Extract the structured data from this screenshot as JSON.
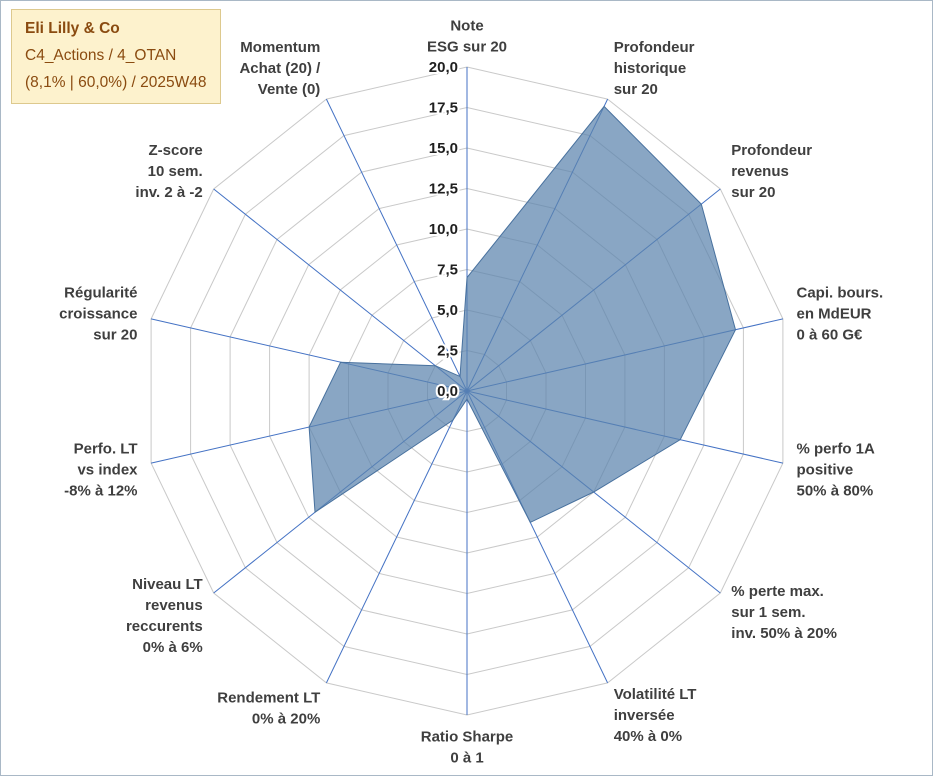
{
  "title_box": {
    "company": "Eli Lilly & Co",
    "portfolio": "C4_Actions / 4_OTAN",
    "stats": "(8,1% | 60,0%) / 2025W48",
    "colors": {
      "bg": "#fdf2cd",
      "border": "#ddc98e",
      "text": "#8a4b10"
    }
  },
  "chart_data": {
    "type": "radar",
    "r_min": 0,
    "r_max": 20,
    "r_step": 2.5,
    "start": "top",
    "direction": "clockwise",
    "grid": true,
    "tick_labels": [
      "0,0",
      "2,5",
      "5,0",
      "7,5",
      "10,0",
      "12,5",
      "15,0",
      "17,5",
      "20,0"
    ],
    "axes": [
      {
        "id": "note-esg",
        "label_lines": [
          "Note",
          "ESG sur 20"
        ],
        "value": 7
      },
      {
        "id": "profondeur-historique",
        "label_lines": [
          "Profondeur",
          "historique",
          "sur 20"
        ],
        "value": 19.5
      },
      {
        "id": "profondeur-revenus",
        "label_lines": [
          "Profondeur",
          "revenus",
          "sur 20"
        ],
        "value": 18.5
      },
      {
        "id": "capi-boursiere",
        "label_lines": [
          "Capi. bours.",
          "en MdEUR",
          "0 à 60 G€"
        ],
        "value": 17
      },
      {
        "id": "perfo-1a-positive",
        "label_lines": [
          "% perfo 1A",
          "positive",
          "50% à 80%"
        ],
        "value": 13.5
      },
      {
        "id": "perte-max-1-sem",
        "label_lines": [
          "% perte max.",
          "sur 1 sem.",
          "inv. 50% à 20%"
        ],
        "value": 10
      },
      {
        "id": "volatilite-lt-inversee",
        "label_lines": [
          "Volatilité LT",
          "inversée",
          "40% à 0%"
        ],
        "value": 9
      },
      {
        "id": "ratio-sharpe",
        "label_lines": [
          "Ratio Sharpe",
          "0 à 1"
        ],
        "value": 0.5
      },
      {
        "id": "rendement-lt",
        "label_lines": [
          "Rendement LT",
          "0% à 20%"
        ],
        "value": 2
      },
      {
        "id": "niveau-lt-revenus",
        "label_lines": [
          "Niveau LT",
          "revenus",
          "reccurents",
          "0% à 6%"
        ],
        "value": 12
      },
      {
        "id": "perfo-lt-vs-index",
        "label_lines": [
          "Perfo. LT",
          "vs index",
          "-8% à 12%"
        ],
        "value": 10
      },
      {
        "id": "regularite-croissance",
        "label_lines": [
          "Régularité",
          "croissance",
          "sur 20"
        ],
        "value": 8
      },
      {
        "id": "z-score",
        "label_lines": [
          "Z-score",
          "10 sem.",
          "inv. 2 à -2"
        ],
        "value": 2.5
      },
      {
        "id": "momentum",
        "label_lines": [
          "Momentum",
          "Achat (20) /",
          "Vente (0)"
        ],
        "value": 1
      }
    ],
    "colors": {
      "fill": "#5b83ad",
      "fill_opacity": 0.72,
      "series_stroke": "#48719e",
      "spoke": "#4472c4",
      "grid": "#c9c9c9",
      "tick_text": "#1f1f1f",
      "axis_text": "#3f3f3f"
    }
  }
}
